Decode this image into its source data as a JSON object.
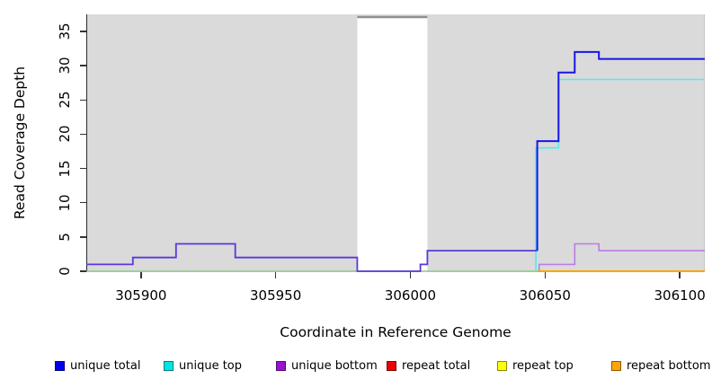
{
  "chart_data": {
    "type": "line",
    "subtype": "step-coverage",
    "title": "",
    "xlabel": "Coordinate in Reference Genome",
    "ylabel": "Read Coverage Depth",
    "xlim": [
      305879.7,
      306109.3
    ],
    "ylim": [
      0,
      37.5
    ],
    "x_ticks": [
      305900,
      305950,
      306000,
      306050,
      306100
    ],
    "y_ticks": [
      0,
      5,
      10,
      15,
      20,
      25,
      30,
      35
    ],
    "grid": false,
    "legend_position": "bottom",
    "plot_background": "#DADADA",
    "excluded_region": {
      "from": 305980.3,
      "to": 306006.3,
      "fill": "#FFFFFF",
      "cap_color": "#8F8F8F",
      "cap_width": 2.4
    },
    "series": [
      {
        "key": "zero-baseline",
        "name": "unique top + repeat top overlap at zero (appears green)",
        "color": "#8CC98C",
        "width": 1.5,
        "points": [
          [
            305879.7,
            0
          ],
          [
            306047,
            0
          ]
        ]
      },
      {
        "key": "unique-bottom",
        "name": "unique bottom",
        "color": "#BB7DE4",
        "width": 1.6,
        "points": [
          [
            306047.8,
            0
          ],
          [
            306047.8,
            1
          ],
          [
            306061,
            1
          ],
          [
            306061,
            4
          ],
          [
            306070,
            4
          ],
          [
            306070,
            3
          ],
          [
            306109.3,
            3
          ]
        ]
      },
      {
        "key": "unique-top",
        "name": "unique top",
        "color": "#55E9EF",
        "width": 1.6,
        "points": [
          [
            306046.6,
            0
          ],
          [
            306046.6,
            18
          ],
          [
            306055,
            18
          ],
          [
            306055,
            28
          ],
          [
            306109.3,
            28
          ]
        ]
      },
      {
        "key": "unique-total-left",
        "name": "unique total (left region, blended with unique bottom)",
        "color": "#5B38DC",
        "width": 1.8,
        "points": [
          [
            305879.7,
            1
          ],
          [
            305897,
            1
          ],
          [
            305897,
            2
          ],
          [
            305913,
            2
          ],
          [
            305913,
            4
          ],
          [
            305935,
            4
          ],
          [
            305935,
            2
          ],
          [
            305980.3,
            2
          ],
          [
            305980.3,
            0
          ],
          [
            306003.7,
            0
          ],
          [
            306003.7,
            1
          ],
          [
            306006.3,
            1
          ],
          [
            306006.3,
            3
          ],
          [
            306047.1,
            3
          ]
        ]
      },
      {
        "key": "unique-total-right",
        "name": "unique total (right region)",
        "color": "#1814E9",
        "width": 2,
        "points": [
          [
            306047.1,
            3
          ],
          [
            306047.1,
            19
          ],
          [
            306055,
            19
          ],
          [
            306055,
            29
          ],
          [
            306061,
            29
          ],
          [
            306061,
            32
          ],
          [
            306070,
            32
          ],
          [
            306070,
            31
          ],
          [
            306109.3,
            31
          ]
        ]
      },
      {
        "key": "repeat-bottom",
        "name": "repeat bottom",
        "color": "#FFA500",
        "width": 2,
        "points": [
          [
            306047,
            0
          ],
          [
            306109.3,
            0
          ]
        ]
      }
    ]
  },
  "legend": {
    "items": [
      {
        "key": "unique-total",
        "label": "unique total",
        "color": "#0000F0"
      },
      {
        "key": "unique-top",
        "label": "unique top",
        "color": "#00E6E6"
      },
      {
        "key": "unique-bottom",
        "label": "unique bottom",
        "color": "#9912CE"
      },
      {
        "key": "repeat-total",
        "label": "repeat total",
        "color": "#EE0000"
      },
      {
        "key": "repeat-top",
        "label": "repeat top",
        "color": "#FFFF00"
      },
      {
        "key": "repeat-bottom",
        "label": "repeat bottom",
        "color": "#FFA500"
      }
    ]
  }
}
